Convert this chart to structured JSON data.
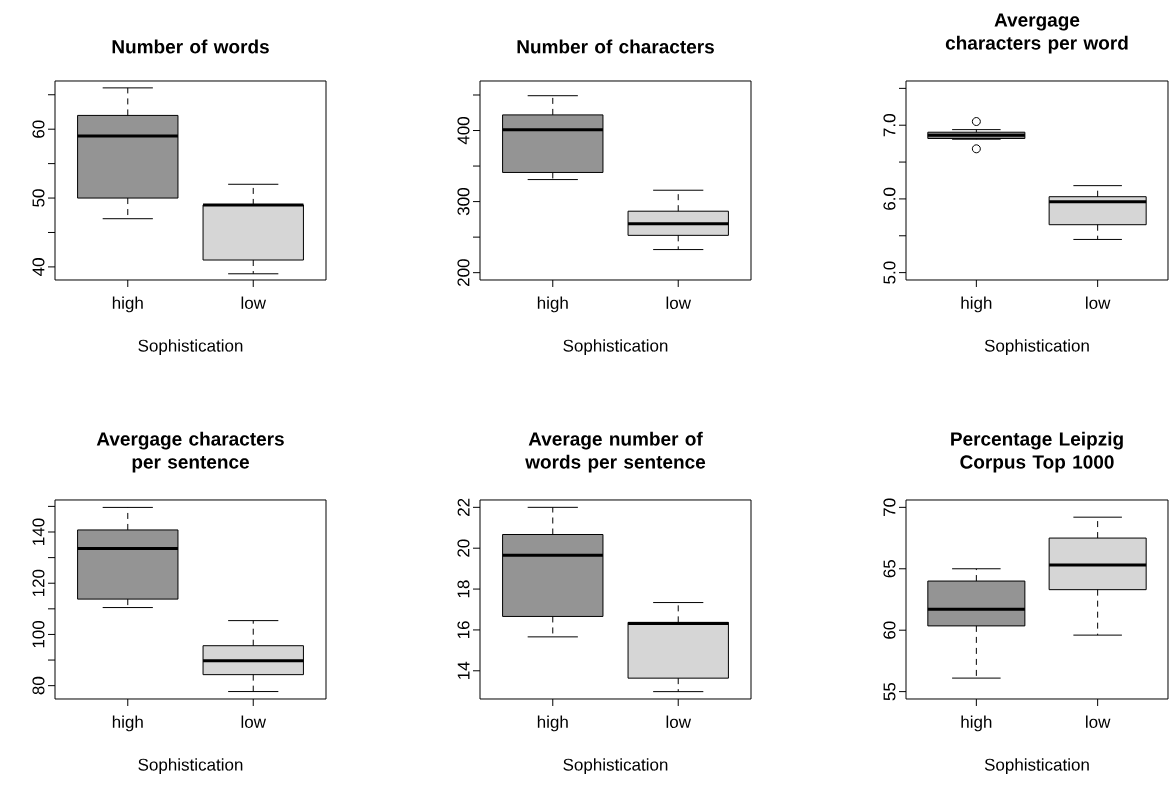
{
  "chart_data": [
    {
      "type": "box",
      "title": "Number of words",
      "xlabel": "Sophistication",
      "categories": [
        "high",
        "low"
      ],
      "colors": [
        "#949494",
        "#d6d6d6"
      ],
      "ylim": [
        38.1,
        67.0
      ],
      "yticks": [
        40,
        {
          "value": 45,
          "label": null
        },
        50,
        {
          "value": 55,
          "label": null
        },
        60,
        {
          "value": 65,
          "label": null
        }
      ],
      "boxes": [
        {
          "low": 47,
          "q1": 50,
          "median": 59,
          "q3": 62,
          "high": 66
        },
        {
          "low": 39,
          "q1": 41,
          "median": 49,
          "q3": 49,
          "high": 52
        }
      ]
    },
    {
      "type": "box",
      "title": "Number of characters",
      "xlabel": "Sophistication",
      "categories": [
        "high",
        "low"
      ],
      "colors": [
        "#949494",
        "#d6d6d6"
      ],
      "ylim": [
        189.7,
        469.7
      ],
      "yticks": [
        200,
        {
          "value": 250,
          "label": null
        },
        300,
        {
          "value": 350,
          "label": null
        },
        400,
        {
          "value": 450,
          "label": null
        }
      ],
      "boxes": [
        {
          "low": 331,
          "q1": 341,
          "median": 401,
          "q3": 422,
          "high": 449
        },
        {
          "low": 232.5,
          "q1": 252.5,
          "median": 269,
          "q3": 286.5,
          "high": 316
        }
      ]
    },
    {
      "type": "box",
      "title": "Avergage characters per word",
      "xlabel": "Sophistication",
      "categories": [
        "high",
        "low"
      ],
      "colors": [
        "#949494",
        "#d6d6d6"
      ],
      "ylim": [
        4.9,
        7.6
      ],
      "yticks": [
        {
          "value": 5.0,
          "label": "5.0"
        },
        {
          "value": 5.5,
          "label": null
        },
        {
          "value": 6.0,
          "label": "6.0"
        },
        {
          "value": 6.5,
          "label": null
        },
        {
          "value": 7.0,
          "label": "7.0"
        },
        {
          "value": 7.5,
          "label": null
        }
      ],
      "boxes": [
        {
          "low": 6.81,
          "q1": 6.82,
          "median": 6.865,
          "q3": 6.905,
          "high": 6.94,
          "outliers": [
            7.05,
            6.68
          ]
        },
        {
          "low": 5.45,
          "q1": 5.65,
          "median": 5.96,
          "q3": 6.03,
          "high": 6.18
        }
      ]
    },
    {
      "type": "box",
      "title": "Avergage characters per sentence",
      "xlabel": "Sophistication",
      "categories": [
        "high",
        "low"
      ],
      "colors": [
        "#949494",
        "#d6d6d6"
      ],
      "ylim": [
        74.8,
        152.5
      ],
      "yticks": [
        80,
        {
          "value": 90,
          "label": null
        },
        100,
        {
          "value": 110,
          "label": null
        },
        120,
        {
          "value": 130,
          "label": null
        },
        140,
        {
          "value": 150,
          "label": null
        }
      ],
      "boxes": [
        {
          "low": 110.5,
          "q1": 113.8,
          "median": 133.6,
          "q3": 140.8,
          "high": 149.6
        },
        {
          "low": 77.7,
          "q1": 84.3,
          "median": 89.7,
          "q3": 95.6,
          "high": 105.4
        }
      ]
    },
    {
      "type": "box",
      "title": "Average number of words per sentence",
      "xlabel": "Sophistication",
      "categories": [
        "high",
        "low"
      ],
      "colors": [
        "#949494",
        "#d6d6d6"
      ],
      "ylim": [
        12.62,
        22.36
      ],
      "yticks": [
        14,
        16,
        18,
        20,
        22
      ],
      "boxes": [
        {
          "low": 15.66,
          "q1": 16.66,
          "median": 19.66,
          "q3": 20.67,
          "high": 22.0
        },
        {
          "low": 12.98,
          "q1": 13.64,
          "median": 16.32,
          "q3": 16.37,
          "high": 17.34
        }
      ]
    },
    {
      "type": "box",
      "title": "Percentage Leipzig Corpus Top 1000",
      "xlabel": "Sophistication",
      "categories": [
        "high",
        "low"
      ],
      "colors": [
        "#949494",
        "#d6d6d6"
      ],
      "ylim": [
        54.4,
        70.6
      ],
      "yticks": [
        55,
        60,
        65,
        70
      ],
      "boxes": [
        {
          "low": 56.1,
          "q1": 60.35,
          "median": 61.7,
          "q3": 64.0,
          "high": 65.0
        },
        {
          "low": 59.6,
          "q1": 63.3,
          "median": 65.3,
          "q3": 67.5,
          "high": 69.2
        }
      ]
    }
  ]
}
